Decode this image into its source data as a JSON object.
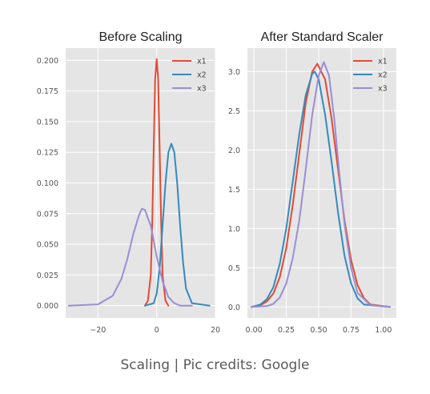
{
  "caption": "Scaling | Pic credits: Google",
  "chart_data": [
    {
      "type": "line",
      "title": "Before Scaling",
      "xlabel": "",
      "ylabel": "",
      "xlim": [
        -31,
        20
      ],
      "ylim": [
        -0.01,
        0.21
      ],
      "xticks": [
        -20,
        0,
        20
      ],
      "yticks": [
        0.0,
        0.025,
        0.05,
        0.075,
        0.1,
        0.125,
        0.15,
        0.175,
        0.2
      ],
      "ytick_labels": [
        "0.000",
        "0.025",
        "0.050",
        "0.075",
        "0.100",
        "0.125",
        "0.150",
        "0.175",
        "0.200"
      ],
      "xtick_labels": [
        "−20",
        "0",
        "20"
      ],
      "grid": true,
      "background": "#e5e5e5",
      "legend_position": "top-right",
      "series": [
        {
          "name": "x1",
          "color": "#e24a33",
          "x": [
            -4,
            -3,
            -2,
            -1.5,
            -1,
            -0.5,
            0,
            0.5,
            1,
            1.5,
            2,
            3,
            4
          ],
          "y": [
            0.0,
            0.004,
            0.025,
            0.07,
            0.13,
            0.185,
            0.201,
            0.185,
            0.13,
            0.07,
            0.025,
            0.004,
            0.0
          ]
        },
        {
          "name": "x2",
          "color": "#348abd",
          "x": [
            -4,
            -1,
            0,
            1,
            2,
            3,
            4,
            5,
            6,
            7,
            8,
            9,
            10,
            12,
            18
          ],
          "y": [
            0.0,
            0.002,
            0.01,
            0.03,
            0.065,
            0.1,
            0.125,
            0.132,
            0.125,
            0.1,
            0.065,
            0.035,
            0.014,
            0.002,
            0.0
          ]
        },
        {
          "name": "x3",
          "color": "#988ed5",
          "x": [
            -30,
            -20,
            -15,
            -12,
            -10,
            -8,
            -6,
            -5,
            -4,
            -2,
            0,
            2,
            4,
            6,
            8,
            12
          ],
          "y": [
            0.0,
            0.001,
            0.008,
            0.022,
            0.038,
            0.058,
            0.074,
            0.079,
            0.078,
            0.065,
            0.04,
            0.02,
            0.007,
            0.002,
            0.0,
            0.0
          ]
        }
      ]
    },
    {
      "type": "line",
      "title": "After Standard Scaler",
      "xlabel": "",
      "ylabel": "",
      "xlim": [
        -0.05,
        1.1
      ],
      "ylim": [
        -0.14,
        3.3
      ],
      "xticks": [
        0.0,
        0.25,
        0.5,
        0.75,
        1.0
      ],
      "xtick_labels": [
        "0.00",
        "0.25",
        "0.50",
        "0.75",
        "1.00"
      ],
      "yticks": [
        0.0,
        0.5,
        1.0,
        1.5,
        2.0,
        2.5,
        3.0
      ],
      "ytick_labels": [
        "0.0",
        "0.5",
        "1.0",
        "1.5",
        "2.0",
        "2.5",
        "3.0"
      ],
      "grid": true,
      "background": "#e5e5e5",
      "legend_position": "top-right",
      "series": [
        {
          "name": "x1",
          "color": "#e24a33",
          "x": [
            -0.02,
            0.05,
            0.1,
            0.15,
            0.2,
            0.25,
            0.3,
            0.35,
            0.4,
            0.45,
            0.49,
            0.55,
            0.6,
            0.65,
            0.7,
            0.75,
            0.8,
            0.85,
            0.9,
            1.05
          ],
          "y": [
            0.0,
            0.02,
            0.07,
            0.17,
            0.38,
            0.75,
            1.3,
            1.95,
            2.6,
            3.0,
            3.1,
            2.9,
            2.4,
            1.75,
            1.1,
            0.6,
            0.28,
            0.11,
            0.03,
            0.0
          ]
        },
        {
          "name": "x2",
          "color": "#348abd",
          "x": [
            -0.02,
            0.05,
            0.1,
            0.15,
            0.2,
            0.25,
            0.3,
            0.35,
            0.4,
            0.45,
            0.47,
            0.5,
            0.55,
            0.6,
            0.65,
            0.7,
            0.75,
            0.8,
            0.85,
            1.05
          ],
          "y": [
            0.0,
            0.03,
            0.1,
            0.25,
            0.55,
            1.0,
            1.6,
            2.2,
            2.7,
            2.97,
            3.0,
            2.9,
            2.45,
            1.85,
            1.2,
            0.65,
            0.3,
            0.11,
            0.03,
            0.0
          ]
        },
        {
          "name": "x3",
          "color": "#988ed5",
          "x": [
            -0.02,
            0.1,
            0.15,
            0.2,
            0.25,
            0.3,
            0.35,
            0.4,
            0.45,
            0.5,
            0.54,
            0.58,
            0.62,
            0.66,
            0.7,
            0.75,
            0.8,
            0.9,
            1.05
          ],
          "y": [
            0.0,
            0.01,
            0.04,
            0.12,
            0.3,
            0.62,
            1.1,
            1.75,
            2.45,
            2.95,
            3.12,
            2.95,
            2.4,
            1.7,
            1.05,
            0.5,
            0.18,
            0.02,
            0.0
          ]
        }
      ]
    }
  ]
}
